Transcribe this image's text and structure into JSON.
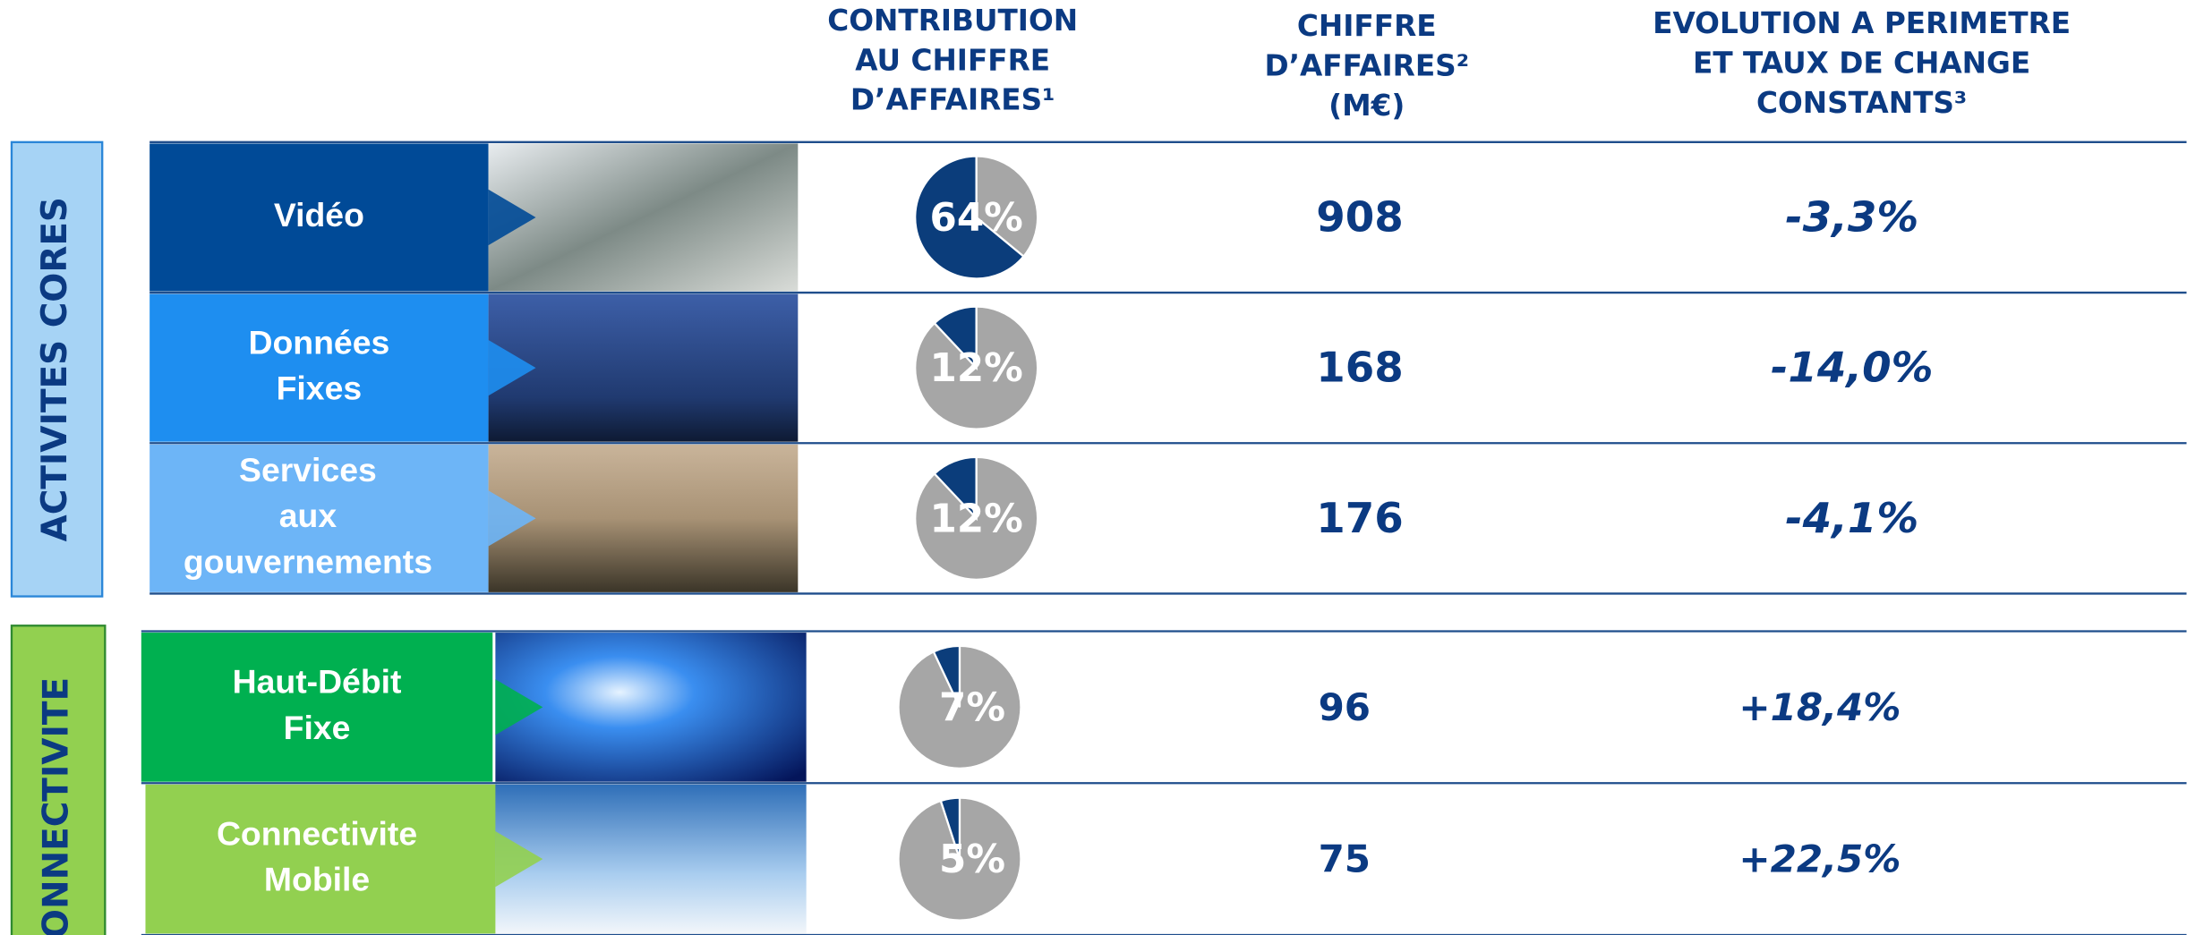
{
  "headers": {
    "contribution": [
      "CONTRIBUTION",
      "AU CHIFFRE",
      "D’AFFAIRES¹"
    ],
    "revenue": [
      "CHIFFRE",
      "D’AFFAIRES²",
      "(M€)"
    ],
    "evolution": [
      "EVOLUTION A PERIMETRE",
      "ET TAUX DE CHANGE",
      "CONSTANTS³"
    ]
  },
  "groups": [
    {
      "label": "ACTIVITES CORES",
      "rows": [
        {
          "label": [
            "Vidéo"
          ],
          "share": 64,
          "share_label": "64%",
          "revenue": 908,
          "evolution": "-3,3%"
        },
        {
          "label": [
            "Données",
            "Fixes"
          ],
          "share": 12,
          "share_label": "12%",
          "revenue": 168,
          "evolution": "-14,0%"
        },
        {
          "label": [
            "Services",
            "aux",
            "gouvernements"
          ],
          "share": 12,
          "share_label": "12%",
          "revenue": 176,
          "evolution": "-4,1%"
        }
      ]
    },
    {
      "label": "CONNECTIVITE",
      "rows": [
        {
          "label": [
            "Haut-Débit",
            "Fixe"
          ],
          "share": 7,
          "share_label": "7%",
          "revenue": 96,
          "evolution": "+18,4%"
        },
        {
          "label": [
            "Connectivite",
            "Mobile"
          ],
          "share": 5,
          "share_label": "5%",
          "revenue": 75,
          "evolution": "+22,5%"
        }
      ]
    }
  ]
}
